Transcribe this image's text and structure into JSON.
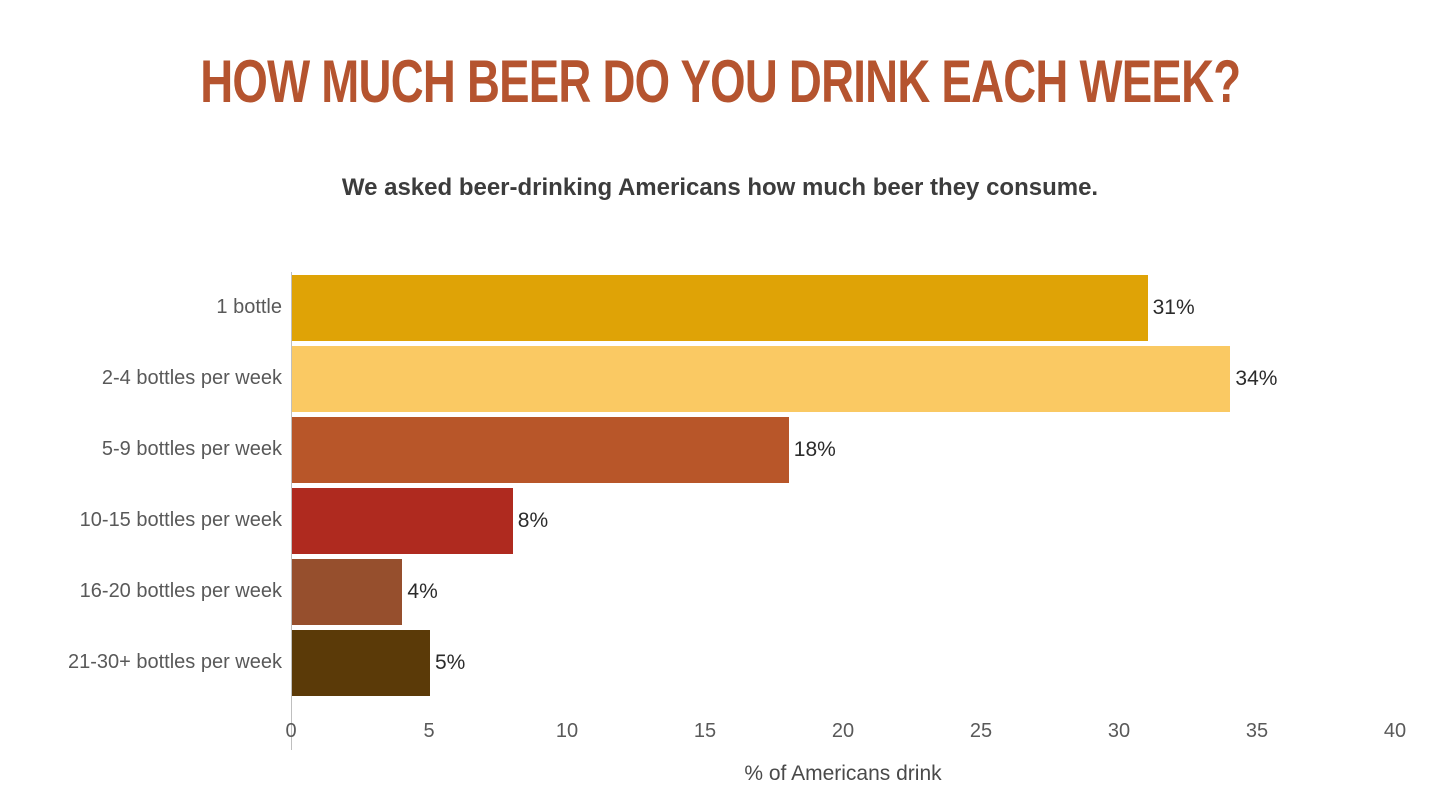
{
  "title": "HOW MUCH BEER DO YOU DRINK EACH WEEK?",
  "subtitle": "We asked beer-drinking Americans how much beer they consume.",
  "chart_data": {
    "type": "bar",
    "orientation": "horizontal",
    "title": "HOW MUCH BEER DO YOU DRINK EACH WEEK?",
    "subtitle": "We asked beer-drinking Americans how much beer they consume.",
    "categories": [
      "1 bottle",
      "2-4 bottles per week",
      "5-9 bottles per week",
      "10-15 bottles per week",
      "16-20 bottles per week",
      "21-30+ bottles per week"
    ],
    "values": [
      31,
      34,
      18,
      8,
      4,
      5
    ],
    "value_labels": [
      "31%",
      "34%",
      "18%",
      "8%",
      "4%",
      "5%"
    ],
    "bar_colors": [
      "#DFA306",
      "#FAC963",
      "#B85629",
      "#AF2A1F",
      "#964F2D",
      "#5B3A08"
    ],
    "xlabel": "% of Americans drink",
    "xlim": [
      0,
      40
    ],
    "xticks": [
      0,
      5,
      10,
      15,
      20,
      25,
      30,
      35,
      40
    ],
    "xtick_labels": [
      "0",
      "5",
      "10",
      "15",
      "20",
      "25",
      "30",
      "35",
      "40"
    ],
    "grid": false,
    "legend": false
  },
  "colors": {
    "title": "#B5542F",
    "subtitle": "#3C3C3C",
    "category_label": "#595959",
    "value_label": "#2B2B2B",
    "tick_label": "#595959",
    "axis_line": "#BFBFBF",
    "xlabel": "#4A4A4A",
    "background": "#FFFFFF"
  }
}
